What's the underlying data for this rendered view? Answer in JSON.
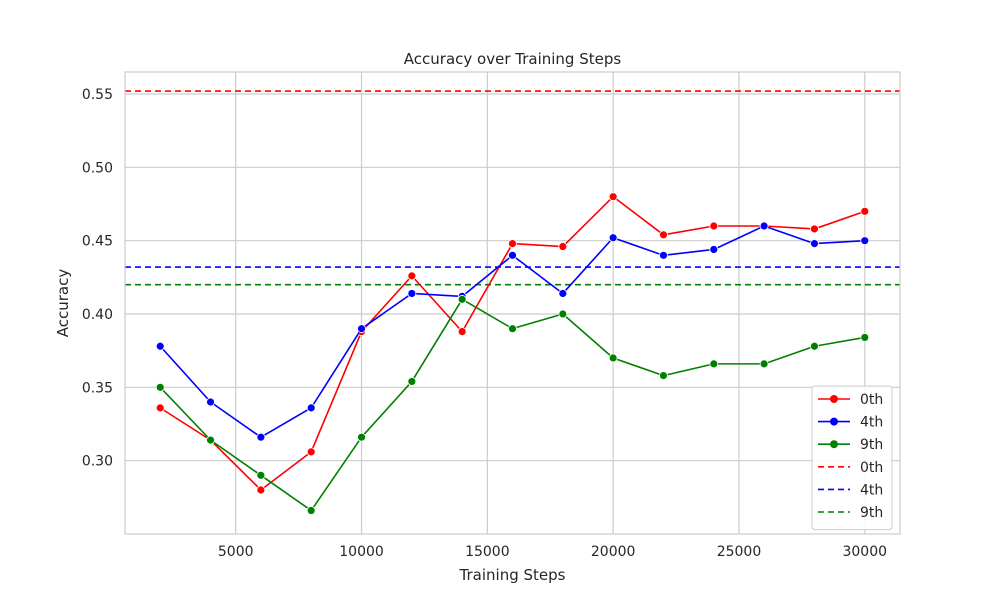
{
  "chart_data": {
    "type": "line",
    "title": "Accuracy over Training Steps",
    "xlabel": "Training Steps",
    "ylabel": "Accuracy",
    "xlim": [
      600,
      31400
    ],
    "ylim": [
      0.25,
      0.565
    ],
    "xticks": [
      5000,
      10000,
      15000,
      20000,
      25000,
      30000
    ],
    "yticks": [
      0.3,
      0.35,
      0.4,
      0.45,
      0.5,
      0.55
    ],
    "xtick_labels": [
      "5000",
      "10000",
      "15000",
      "20000",
      "25000",
      "30000"
    ],
    "ytick_labels": [
      "0.30",
      "0.35",
      "0.40",
      "0.45",
      "0.50",
      "0.55"
    ],
    "grid": true,
    "legend_position": "lower-right",
    "x": [
      2000,
      4000,
      6000,
      8000,
      10000,
      12000,
      14000,
      16000,
      18000,
      20000,
      22000,
      24000,
      26000,
      28000,
      30000
    ],
    "series": [
      {
        "name": "0th",
        "color": "#ff0000",
        "style": "solid-marker",
        "values": [
          0.336,
          0.314,
          0.28,
          0.306,
          0.388,
          0.426,
          0.388,
          0.448,
          0.446,
          0.48,
          0.454,
          0.46,
          0.46,
          0.458,
          0.47
        ]
      },
      {
        "name": "4th",
        "color": "#0000ff",
        "style": "solid-marker",
        "values": [
          0.378,
          0.34,
          0.316,
          0.336,
          0.39,
          0.414,
          0.412,
          0.44,
          0.414,
          0.452,
          0.44,
          0.444,
          0.46,
          0.448,
          0.45
        ]
      },
      {
        "name": "9th",
        "color": "#008000",
        "style": "solid-marker",
        "values": [
          0.35,
          0.314,
          0.29,
          0.266,
          0.316,
          0.354,
          0.41,
          0.39,
          0.4,
          0.37,
          0.358,
          0.366,
          0.366,
          0.378,
          0.384
        ]
      }
    ],
    "reference_lines": [
      {
        "name": "0th",
        "color": "#ff0000",
        "style": "dashed",
        "y": 0.552
      },
      {
        "name": "4th",
        "color": "#0000ff",
        "style": "dashed",
        "y": 0.432
      },
      {
        "name": "9th",
        "color": "#008000",
        "style": "dashed",
        "y": 0.42
      }
    ]
  }
}
